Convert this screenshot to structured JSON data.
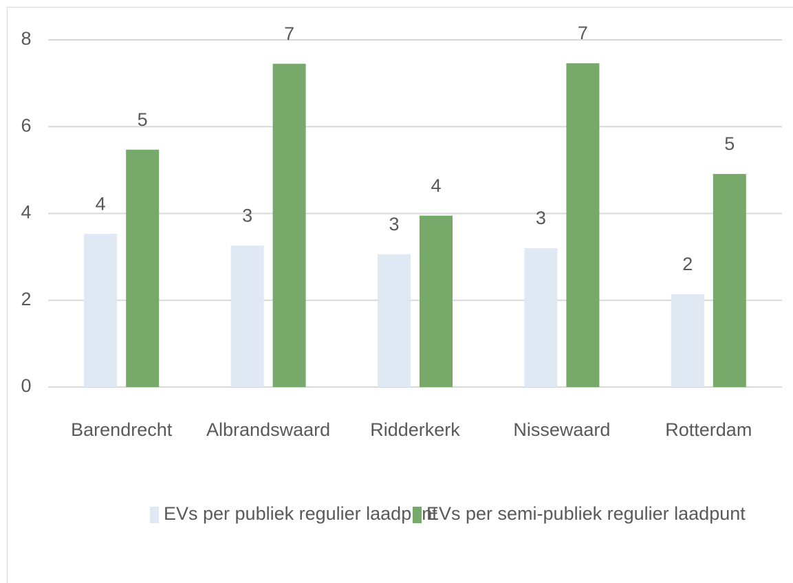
{
  "chart_data": {
    "type": "bar",
    "categories": [
      "Barendrecht",
      "Albrandswaard",
      "Ridderkerk",
      "Nissewaard",
      "Rotterdam"
    ],
    "series": [
      {
        "name": "EVs per publiek regulier laadpunt",
        "color": "#dfe8f3",
        "values": [
          3.53,
          3.26,
          3.06,
          3.2,
          2.14
        ],
        "value_labels": [
          "4",
          "3",
          "3",
          "3",
          "2"
        ]
      },
      {
        "name": "EVs per semi-publiek regulier laadpunt",
        "color": "#77a96a",
        "values": [
          5.47,
          7.45,
          3.95,
          7.46,
          4.91
        ],
        "value_labels": [
          "5",
          "7",
          "4",
          "7",
          "5"
        ]
      }
    ],
    "ylim": [
      0,
      8
    ],
    "yticks": [
      0,
      2,
      4,
      6,
      8
    ],
    "grid": true,
    "legend": "bottom"
  }
}
